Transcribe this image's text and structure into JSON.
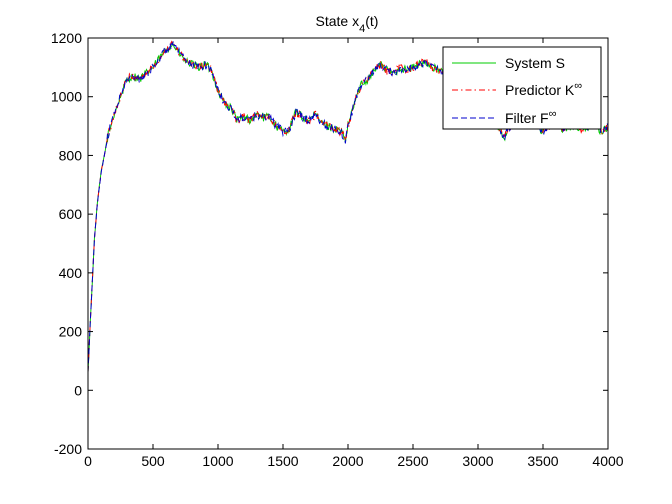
{
  "chart_data": {
    "type": "line",
    "title": "State x",
    "title_sub": "4",
    "title_suffix": "(t)",
    "xlabel": "",
    "ylabel": "",
    "xlim": [
      0,
      4000
    ],
    "ylim": [
      -200,
      1200
    ],
    "xticks": [
      0,
      500,
      1000,
      1500,
      2000,
      2500,
      3000,
      3500,
      4000
    ],
    "yticks": [
      -200,
      0,
      200,
      400,
      600,
      800,
      1000,
      1200
    ],
    "grid": false,
    "legend_position": "top-right",
    "series": [
      {
        "name": "System S",
        "label": "System S",
        "label_sup": "",
        "color": "#00cc00",
        "dash": "solid"
      },
      {
        "name": "Predictor K∞",
        "label": "Predictor K",
        "label_sup": "∞",
        "color": "#ff0000",
        "dash": "dashdot"
      },
      {
        "name": "Filter F∞",
        "label": "Filter F",
        "label_sup": "∞",
        "color": "#0000cc",
        "dash": "dashed"
      }
    ],
    "x": [
      0,
      25,
      50,
      75,
      100,
      150,
      200,
      250,
      300,
      350,
      400,
      450,
      500,
      550,
      600,
      650,
      700,
      750,
      800,
      850,
      900,
      950,
      1000,
      1050,
      1100,
      1150,
      1200,
      1250,
      1300,
      1350,
      1400,
      1450,
      1500,
      1550,
      1600,
      1650,
      1700,
      1750,
      1800,
      1850,
      1900,
      1950,
      1980,
      2000,
      2050,
      2100,
      2150,
      2200,
      2250,
      2300,
      2350,
      2400,
      2450,
      2500,
      2550,
      2600,
      2650,
      2700,
      2750,
      2800,
      2850,
      2900,
      2950,
      3000,
      3050,
      3100,
      3150,
      3200,
      3250,
      3300,
      3350,
      3400,
      3450,
      3500,
      3550,
      3600,
      3650,
      3700,
      3750,
      3800,
      3850,
      3900,
      3950,
      4000
    ],
    "values": [
      60,
      300,
      520,
      650,
      740,
      860,
      940,
      1000,
      1060,
      1070,
      1060,
      1080,
      1100,
      1130,
      1160,
      1180,
      1150,
      1120,
      1110,
      1100,
      1110,
      1090,
      1020,
      980,
      960,
      920,
      930,
      920,
      940,
      930,
      930,
      900,
      880,
      890,
      950,
      930,
      920,
      940,
      910,
      900,
      890,
      880,
      850,
      900,
      980,
      1040,
      1060,
      1090,
      1110,
      1090,
      1080,
      1100,
      1090,
      1100,
      1110,
      1120,
      1100,
      1090,
      1080,
      1100,
      1080,
      1040,
      980,
      960,
      940,
      920,
      900,
      860,
      900,
      930,
      940,
      920,
      900,
      880,
      900,
      920,
      890,
      900,
      900,
      890,
      900,
      910,
      880,
      900
    ]
  }
}
